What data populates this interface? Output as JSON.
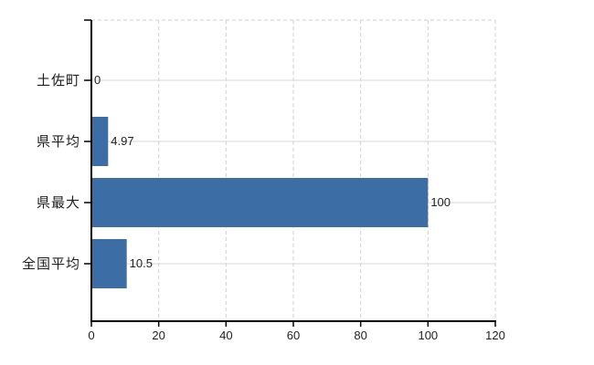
{
  "chart_data": {
    "type": "bar",
    "orientation": "horizontal",
    "title": "",
    "xlabel": "",
    "ylabel": "",
    "categories": [
      "土佐町",
      "県平均",
      "県最大",
      "全国平均"
    ],
    "values": [
      0,
      4.97,
      100,
      10.5
    ],
    "value_labels": [
      "0",
      "4.97",
      "100",
      "10.5"
    ],
    "xlim": [
      0,
      120
    ],
    "xticks": [
      0,
      20,
      40,
      60,
      80,
      100,
      120
    ],
    "grid": true,
    "legend": "none",
    "colors": {
      "bar": "#3c6da5",
      "axis": "#000000",
      "grid_dashed": "#d2cdd6",
      "grid_solid": "#d5dad2",
      "text": "#1f1f1f",
      "background": "#ffffff"
    }
  }
}
